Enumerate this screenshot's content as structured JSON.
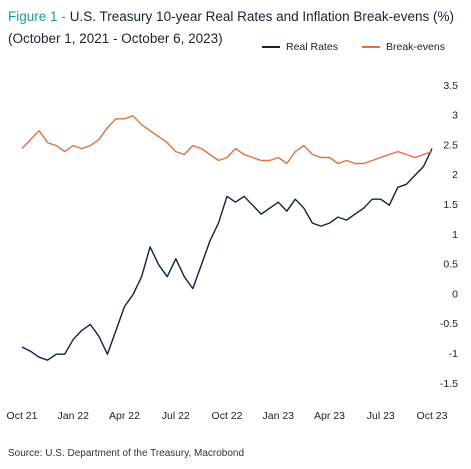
{
  "chart_data": {
    "type": "line",
    "figure_label": "Figure 1 -",
    "title": "U.S. Treasury 10-year Real Rates and Inflation Break-evens (%)",
    "subtitle": "(October 1, 2021 - October 6, 2023)",
    "source": "Source: U.S. Department of the Treasury, Macrobond",
    "categories": [
      "Oct 21",
      null,
      null,
      null,
      null,
      null,
      "Jan 22",
      null,
      null,
      null,
      null,
      null,
      "Apr 22",
      null,
      null,
      null,
      null,
      null,
      "Jul 22",
      null,
      null,
      null,
      null,
      null,
      "Oct 22",
      null,
      null,
      null,
      null,
      null,
      "Jan 23",
      null,
      null,
      null,
      null,
      null,
      "Apr 23",
      null,
      null,
      null,
      null,
      null,
      "Jul 23",
      null,
      null,
      null,
      null,
      null,
      "Oct 23"
    ],
    "series": [
      {
        "name": "Real Rates",
        "color": "#0d2340",
        "values": [
          -0.88,
          -0.95,
          -1.05,
          -1.1,
          -1.0,
          -1.0,
          -0.75,
          -0.6,
          -0.5,
          -0.7,
          -1.0,
          -0.6,
          -0.2,
          0.0,
          0.3,
          0.8,
          0.5,
          0.3,
          0.6,
          0.3,
          0.1,
          0.5,
          0.9,
          1.2,
          1.65,
          1.55,
          1.65,
          1.5,
          1.35,
          1.45,
          1.55,
          1.4,
          1.6,
          1.45,
          1.2,
          1.15,
          1.2,
          1.3,
          1.25,
          1.35,
          1.45,
          1.6,
          1.6,
          1.5,
          1.8,
          1.85,
          2.0,
          2.15,
          2.45
        ]
      },
      {
        "name": "Break-evens",
        "color": "#e0703f",
        "values": [
          2.45,
          2.6,
          2.75,
          2.55,
          2.5,
          2.4,
          2.5,
          2.45,
          2.5,
          2.6,
          2.8,
          2.95,
          2.95,
          3.0,
          2.85,
          2.75,
          2.65,
          2.55,
          2.4,
          2.35,
          2.5,
          2.45,
          2.35,
          2.25,
          2.3,
          2.45,
          2.35,
          2.3,
          2.25,
          2.25,
          2.3,
          2.2,
          2.4,
          2.5,
          2.35,
          2.3,
          2.3,
          2.2,
          2.25,
          2.2,
          2.2,
          2.25,
          2.3,
          2.35,
          2.4,
          2.35,
          2.3,
          2.35,
          2.4
        ]
      }
    ],
    "ylim": [
      -1.5,
      3.5
    ],
    "yticks": [
      3.5,
      3,
      2.5,
      2,
      1.5,
      1,
      0.5,
      0,
      -0.5,
      -1,
      -1.5
    ],
    "grid": false
  }
}
